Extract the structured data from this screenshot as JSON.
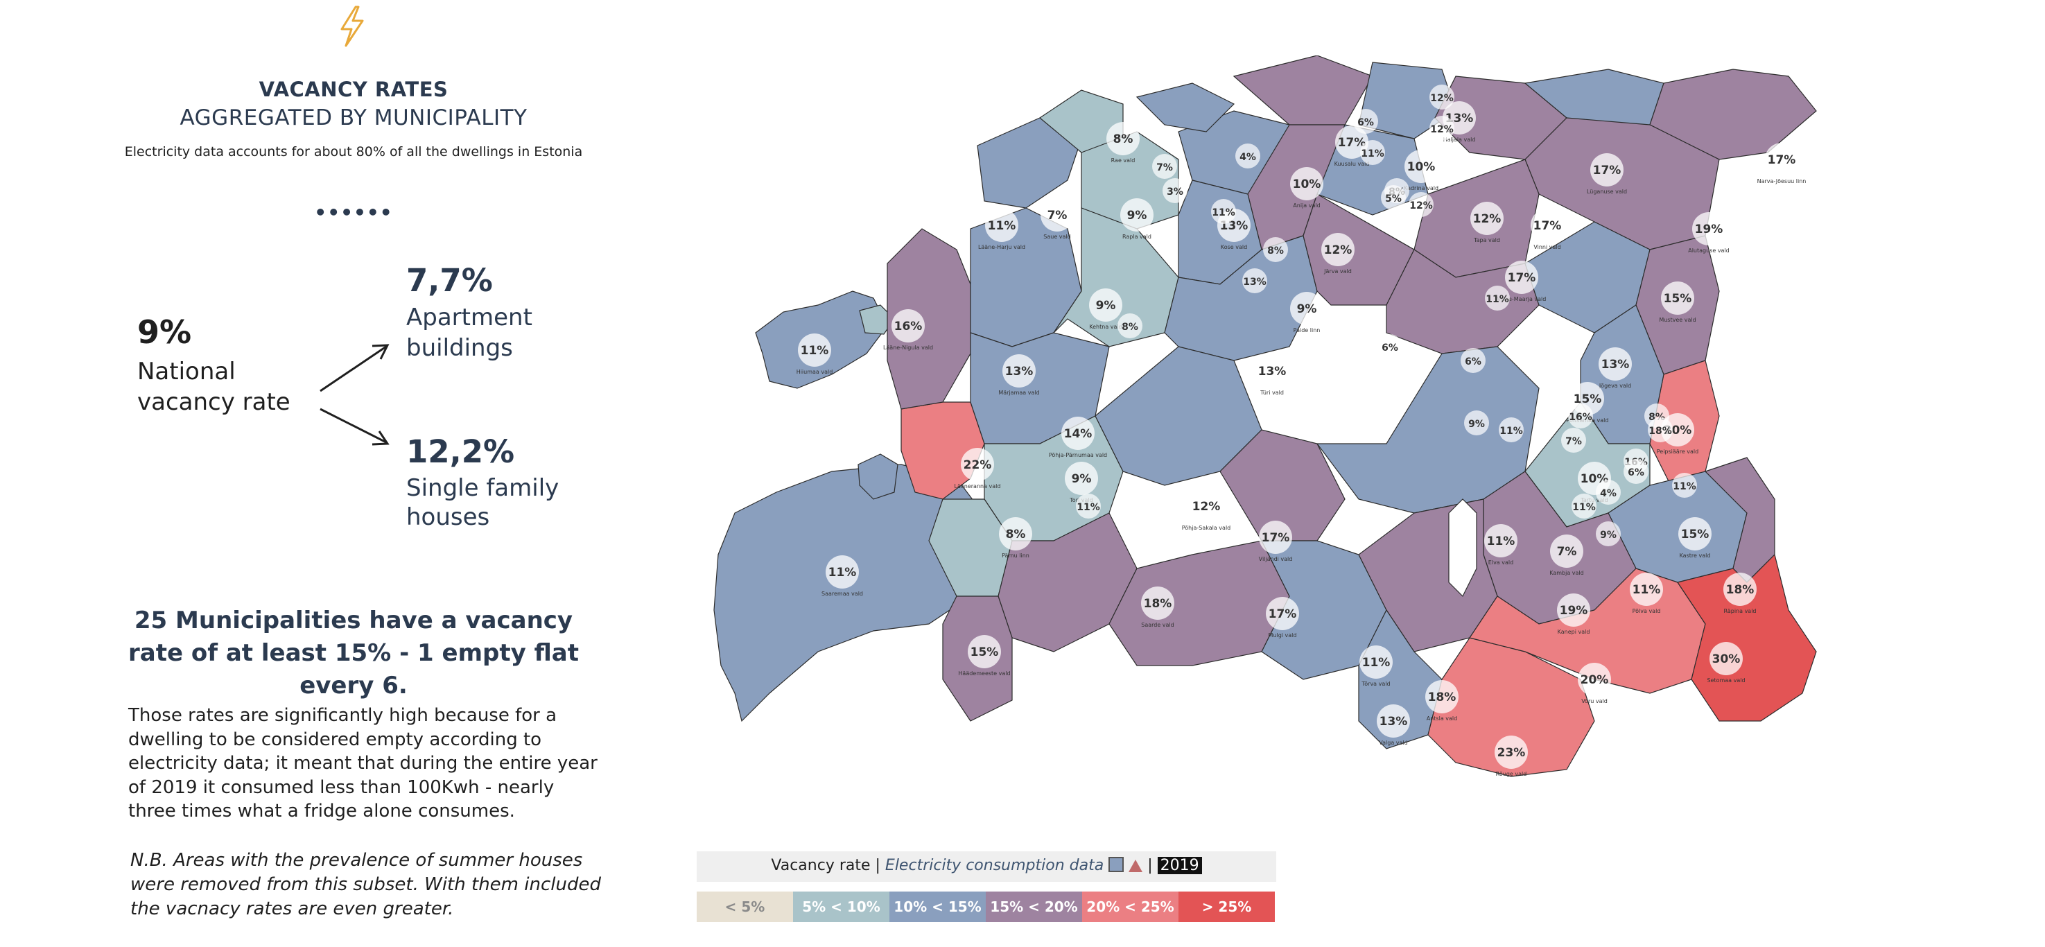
{
  "header": {
    "icon": "lightning-bolt-icon",
    "title_line1": "VACANCY RATES",
    "title_line2": "AGGREGATED BY MUNICIPALITY",
    "subtitle": "Electricity data accounts for about 80% of all the dwellings in Estonia",
    "separator": "••••••"
  },
  "stats": {
    "national_value": "9%",
    "national_label": "National vacancy rate",
    "apartment_value": "7,7%",
    "apartment_label": "Apartment buildings",
    "single_family_value": "12,2%",
    "single_family_label": "Single family houses"
  },
  "text": {
    "headline": "25 Municipalities have a vacancy rate of at least 15% - 1 empty flat every 6.",
    "body": "Those rates are significantly high because for a dwelling to be considered empty according to electricity data; it meant that during the entire year of 2019 it consumed less than 100Kwh - nearly three times what a fridge alone consumes.",
    "note": "N.B. Areas with the prevalence of summer houses were removed from this subset. With them included the vacnacy rates are even greater."
  },
  "legend": {
    "title_prefix": "Vacancy rate |",
    "source": "Electricity consumption data",
    "icons": [
      "building-icon",
      "house-icon"
    ],
    "separator": "|",
    "year": "2019",
    "classes": [
      {
        "label": "< 5%",
        "color": "#e8e1d3"
      },
      {
        "label": "5% < 10%",
        "color": "#a9c3c9"
      },
      {
        "label": "10% < 15%",
        "color": "#8a9fbe"
      },
      {
        "label": "15% < 20%",
        "color": "#9e83a0"
      },
      {
        "label": "20% < 25%",
        "color": "#eb7f83"
      },
      {
        "label": "> 25%",
        "color": "#e35455"
      }
    ]
  },
  "map": {
    "municipalities": [
      {
        "name": "Saaremaa vald",
        "rate": "11%",
        "class": 2
      },
      {
        "name": "Hiiumaa vald",
        "rate": "11%",
        "class": 2
      },
      {
        "name": "Lääneranna vald",
        "rate": "22%",
        "class": 4
      },
      {
        "name": "Lääne-Nigula vald",
        "rate": "16%",
        "class": 3
      },
      {
        "name": "Märjamaa vald",
        "rate": "13%",
        "class": 2
      },
      {
        "name": "Põhja-Pärnumaa vald",
        "rate": "14%",
        "class": 2
      },
      {
        "name": "Pärnu linn",
        "rate": "8%",
        "class": 1
      },
      {
        "name": "Tori vald",
        "rate": "9%",
        "class": 1
      },
      {
        "name": "Saarde vald",
        "rate": "18%",
        "class": 3
      },
      {
        "name": "Häädemeeste vald",
        "rate": "15%",
        "class": 3
      },
      {
        "name": "Põhja-Sakala vald",
        "rate": "12%",
        "class": 2
      },
      {
        "name": "Viljandi vald",
        "rate": "17%",
        "class": 3
      },
      {
        "name": "Mulgi vald",
        "rate": "17%",
        "class": 3
      },
      {
        "name": "Tõrva vald",
        "rate": "11%",
        "class": 2
      },
      {
        "name": "Valga vald",
        "rate": "13%",
        "class": 2
      },
      {
        "name": "Antsla vald",
        "rate": "18%",
        "class": 3
      },
      {
        "name": "Rõuge vald",
        "rate": "23%",
        "class": 4
      },
      {
        "name": "Võru vald",
        "rate": "20%",
        "class": 4
      },
      {
        "name": "Setomaa vald",
        "rate": "30%",
        "class": 5
      },
      {
        "name": "Kanepi vald",
        "rate": "19%",
        "class": 3
      },
      {
        "name": "Põlva vald",
        "rate": "11%",
        "class": 2
      },
      {
        "name": "Räpina vald",
        "rate": "18%",
        "class": 3
      },
      {
        "name": "Kastre vald",
        "rate": "15%",
        "class": 3
      },
      {
        "name": "Elva vald",
        "rate": "11%",
        "class": 2
      },
      {
        "name": "Kambja vald",
        "rate": "7%",
        "class": 1
      },
      {
        "name": "Tartu vald",
        "rate": "10%",
        "class": 2
      },
      {
        "name": "Peipsiääre vald",
        "rate": "20%",
        "class": 4
      },
      {
        "name": "Jõgeva vald",
        "rate": "13%",
        "class": 2
      },
      {
        "name": "Põltsamaa vald",
        "rate": "15%",
        "class": 3
      },
      {
        "name": "Türi vald",
        "rate": "13%",
        "class": 2
      },
      {
        "name": "Paide linn",
        "rate": "9%",
        "class": 1
      },
      {
        "name": "Järva vald",
        "rate": "12%",
        "class": 2
      },
      {
        "name": "Väike-Maarja vald",
        "rate": "17%",
        "class": 3
      },
      {
        "name": "Vinni vald",
        "rate": "17%",
        "class": 3
      },
      {
        "name": "Mustvee vald",
        "rate": "15%",
        "class": 3
      },
      {
        "name": "Alutaguse vald",
        "rate": "19%",
        "class": 3
      },
      {
        "name": "Lüganuse vald",
        "rate": "17%",
        "class": 3
      },
      {
        "name": "Narva-Jõesuu linn",
        "rate": "17%",
        "class": 3
      },
      {
        "name": "Haljala vald",
        "rate": "13%",
        "class": 2
      },
      {
        "name": "Kadrina vald",
        "rate": "10%",
        "class": 2
      },
      {
        "name": "Tapa vald",
        "rate": "12%",
        "class": 2
      },
      {
        "name": "Kuusalu vald",
        "rate": "17%",
        "class": 3
      },
      {
        "name": "Anija vald",
        "rate": "10%",
        "class": 2
      },
      {
        "name": "Kose vald",
        "rate": "13%",
        "class": 2
      },
      {
        "name": "Rapla vald",
        "rate": "9%",
        "class": 1
      },
      {
        "name": "Kehtna vald",
        "rate": "9%",
        "class": 1
      },
      {
        "name": "Rae vald",
        "rate": "8%",
        "class": 1
      },
      {
        "name": "Saue vald",
        "rate": "7%",
        "class": 1
      },
      {
        "name": "Lääne-Harju vald",
        "rate": "11%",
        "class": 2
      }
    ],
    "extra_rates": [
      "12%",
      "12%",
      "8%",
      "6%",
      "5%",
      "11%",
      "4%",
      "7%",
      "3%",
      "11%",
      "12%",
      "6%",
      "11%",
      "9%",
      "16%",
      "11%",
      "13%",
      "8%",
      "6%",
      "11%",
      "4%",
      "6%",
      "8%",
      "11%",
      "18%",
      "7%",
      "16%",
      "9%",
      "11%",
      "8%"
    ]
  }
}
